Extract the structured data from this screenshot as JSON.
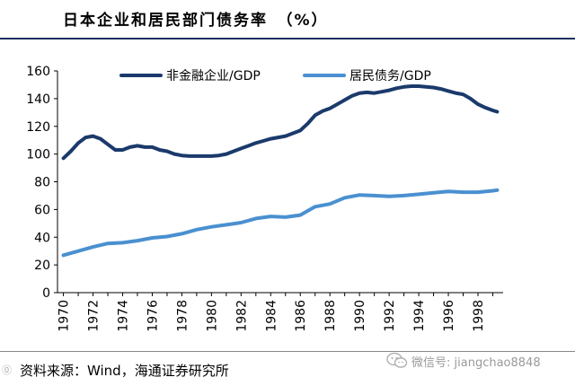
{
  "title": "日本企业和居民部门债务率　（%）",
  "source": "资料来源：Wind，海通证券研究所",
  "watermark": "微信号: jiangchao8848",
  "corner_mark": "⓪",
  "colors": {
    "series1": "#1b3a6b",
    "series2": "#4a90d0",
    "rule": "#1b2f5f"
  },
  "chart_data": {
    "type": "line",
    "title": "日本企业和居民部门债务率　（%）",
    "xlabel": "",
    "ylabel": "",
    "ylim": [
      0,
      160
    ],
    "xlim": [
      1969.6,
      1999.7
    ],
    "yticks": [
      0,
      20,
      40,
      60,
      80,
      100,
      120,
      140,
      160
    ],
    "xticks": [
      1970,
      1972,
      1974,
      1976,
      1978,
      1980,
      1982,
      1984,
      1986,
      1988,
      1990,
      1992,
      1994,
      1996,
      1998
    ],
    "legend_position": "top",
    "series": [
      {
        "name": "非金融企业/GDP",
        "x": [
          1970.0,
          1970.5,
          1971.0,
          1971.5,
          1972.0,
          1972.5,
          1973.0,
          1973.5,
          1974.0,
          1974.5,
          1975.0,
          1975.5,
          1976.0,
          1976.5,
          1977.0,
          1977.5,
          1978.0,
          1978.5,
          1979.0,
          1979.5,
          1980.0,
          1980.5,
          1981.0,
          1981.5,
          1982.0,
          1982.5,
          1983.0,
          1983.5,
          1984.0,
          1984.5,
          1985.0,
          1985.5,
          1986.0,
          1986.5,
          1987.0,
          1987.5,
          1988.0,
          1988.5,
          1989.0,
          1989.5,
          1990.0,
          1990.5,
          1991.0,
          1991.5,
          1992.0,
          1992.5,
          1993.0,
          1993.5,
          1994.0,
          1994.5,
          1995.0,
          1995.5,
          1996.0,
          1996.5,
          1997.0,
          1997.5,
          1998.0,
          1998.5,
          1999.0,
          1999.3
        ],
        "values": [
          97,
          102,
          108,
          112,
          113,
          111,
          107,
          103,
          103,
          105,
          106,
          105,
          105,
          103,
          102,
          100,
          99,
          98.5,
          98.5,
          98.5,
          98.5,
          99,
          100,
          102,
          104,
          106,
          108,
          109.5,
          111,
          112,
          113,
          115,
          117,
          122,
          128,
          131,
          133,
          136,
          139,
          142,
          144,
          144.5,
          144,
          145,
          146,
          147.5,
          148.5,
          149,
          149,
          148.5,
          148,
          147,
          145.5,
          144,
          143,
          140,
          136,
          133.5,
          131.5,
          130.5
        ]
      },
      {
        "name": "居民债务/GDP",
        "x": [
          1970.0,
          1971.0,
          1972.0,
          1973.0,
          1974.0,
          1975.0,
          1976.0,
          1977.0,
          1978.0,
          1979.0,
          1980.0,
          1981.0,
          1982.0,
          1983.0,
          1984.0,
          1985.0,
          1986.0,
          1987.0,
          1988.0,
          1989.0,
          1990.0,
          1991.0,
          1992.0,
          1993.0,
          1994.0,
          1995.0,
          1996.0,
          1997.0,
          1998.0,
          1999.0,
          1999.3
        ],
        "values": [
          27,
          30,
          33,
          35.5,
          36,
          37.5,
          39.5,
          40.5,
          42.5,
          45.5,
          47.5,
          49,
          50.5,
          53.5,
          55,
          54.5,
          56,
          62,
          64,
          68.5,
          70.5,
          70,
          69.5,
          70,
          71,
          72,
          73,
          72.5,
          72.5,
          73.5,
          74
        ]
      }
    ]
  }
}
